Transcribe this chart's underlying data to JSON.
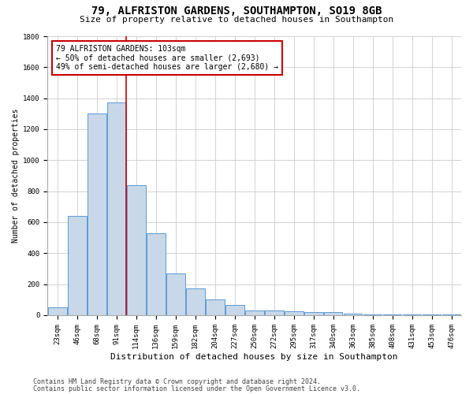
{
  "title1": "79, ALFRISTON GARDENS, SOUTHAMPTON, SO19 8GB",
  "title2": "Size of property relative to detached houses in Southampton",
  "xlabel": "Distribution of detached houses by size in Southampton",
  "ylabel": "Number of detached properties",
  "categories": [
    "23sqm",
    "46sqm",
    "68sqm",
    "91sqm",
    "114sqm",
    "136sqm",
    "159sqm",
    "182sqm",
    "204sqm",
    "227sqm",
    "250sqm",
    "272sqm",
    "295sqm",
    "317sqm",
    "340sqm",
    "363sqm",
    "385sqm",
    "408sqm",
    "431sqm",
    "453sqm",
    "476sqm"
  ],
  "values": [
    50,
    640,
    1300,
    1375,
    840,
    530,
    270,
    175,
    100,
    65,
    30,
    30,
    25,
    22,
    18,
    10,
    7,
    6,
    4,
    3,
    3
  ],
  "bar_color": "#c8d8e8",
  "bar_edge_color": "#5b9bd5",
  "vline_color": "#cc0000",
  "annotation_text": "79 ALFRISTON GARDENS: 103sqm\n← 50% of detached houses are smaller (2,693)\n49% of semi-detached houses are larger (2,680) →",
  "annotation_box_color": "#ffffff",
  "annotation_box_edge": "#cc0000",
  "footer1": "Contains HM Land Registry data © Crown copyright and database right 2024.",
  "footer2": "Contains public sector information licensed under the Open Government Licence v3.0.",
  "ylim": [
    0,
    1800
  ],
  "yticks": [
    0,
    200,
    400,
    600,
    800,
    1000,
    1200,
    1400,
    1600,
    1800
  ],
  "bg_color": "#ffffff",
  "grid_color": "#cccccc",
  "title1_fontsize": 10,
  "title2_fontsize": 8,
  "xlabel_fontsize": 8,
  "ylabel_fontsize": 7,
  "tick_fontsize": 6.5,
  "annotation_fontsize": 7,
  "footer_fontsize": 6
}
